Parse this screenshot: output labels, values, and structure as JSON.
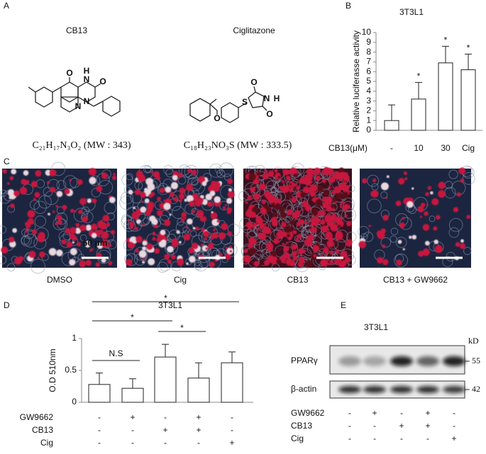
{
  "panel_labels": [
    "A",
    "B",
    "C",
    "D",
    "E"
  ],
  "structures": [
    {
      "name": "CB13",
      "formula": "C₂₁H₁₇N₃O₂ (MW : 343)",
      "atoms": [
        "O",
        "H",
        "N",
        "O",
        "N",
        "N"
      ]
    },
    {
      "name": "Ciglitazone",
      "formula": "C₁₈H₂₃NO₃S (MW : 333.5)",
      "atoms": [
        "O",
        "N",
        "H",
        "S",
        "O",
        "O"
      ]
    }
  ],
  "micrographs": {
    "labels": [
      "DMSO",
      "Cig",
      "CB13",
      "CB13 + GW9662"
    ],
    "scale_bar": "50 μm"
  },
  "chart_data": [
    {
      "type": "bar",
      "title": "3T3L1",
      "y_label": "Relative luciferasse activity",
      "x_label": "CB13(μM)",
      "categories": [
        "-",
        "10",
        "30",
        "Cig"
      ],
      "values": [
        1,
        3.2,
        6.9,
        6.2
      ],
      "errors": [
        1.6,
        1.7,
        1.7,
        1.6
      ],
      "annotations": [
        null,
        "*",
        "*",
        "*"
      ],
      "color": "#ffffff",
      "ylim": [
        0,
        10
      ],
      "yticks": [
        0,
        1,
        2,
        3,
        4,
        5,
        6,
        7,
        8,
        9,
        10
      ]
    },
    {
      "type": "bar",
      "title": "3T3L1",
      "y_label": "O.D 510nm",
      "values": [
        0.28,
        0.22,
        0.71,
        0.38,
        0.62
      ],
      "errors": [
        0.18,
        0.15,
        0.2,
        0.24,
        0.17
      ],
      "color": "#ffffff",
      "ylim": [
        0,
        1
      ],
      "yticks": [
        0,
        0.5,
        1
      ],
      "comparisons": [
        {
          "pair": [
            0,
            1
          ],
          "label": "N.S"
        },
        {
          "pair": [
            0,
            2
          ],
          "label": "*"
        },
        {
          "pair": [
            2,
            3
          ],
          "label": "*"
        },
        {
          "pair": [
            0,
            4
          ],
          "label": "*"
        }
      ],
      "conditions": [
        {
          "name": "GW9662",
          "signs": [
            "-",
            "+",
            "-",
            "+",
            "-"
          ]
        },
        {
          "name": "CB13",
          "signs": [
            "-",
            "-",
            "+",
            "+",
            "-"
          ]
        },
        {
          "name": "Cig",
          "signs": [
            "-",
            "-",
            "-",
            "-",
            "+"
          ]
        }
      ]
    }
  ],
  "western": {
    "title": "3T3L1",
    "unit": "kD",
    "bands": [
      {
        "name": "PPARγ",
        "marker": "55"
      },
      {
        "name": "β-actin",
        "marker": "42"
      }
    ],
    "conditions": [
      {
        "name": "GW9662",
        "signs": [
          "-",
          "+",
          "-",
          "+",
          "-"
        ]
      },
      {
        "name": "CB13",
        "signs": [
          "-",
          "-",
          "+",
          "+",
          "-"
        ]
      },
      {
        "name": "Cig",
        "signs": [
          "-",
          "-",
          "-",
          "-",
          "+"
        ]
      }
    ]
  }
}
